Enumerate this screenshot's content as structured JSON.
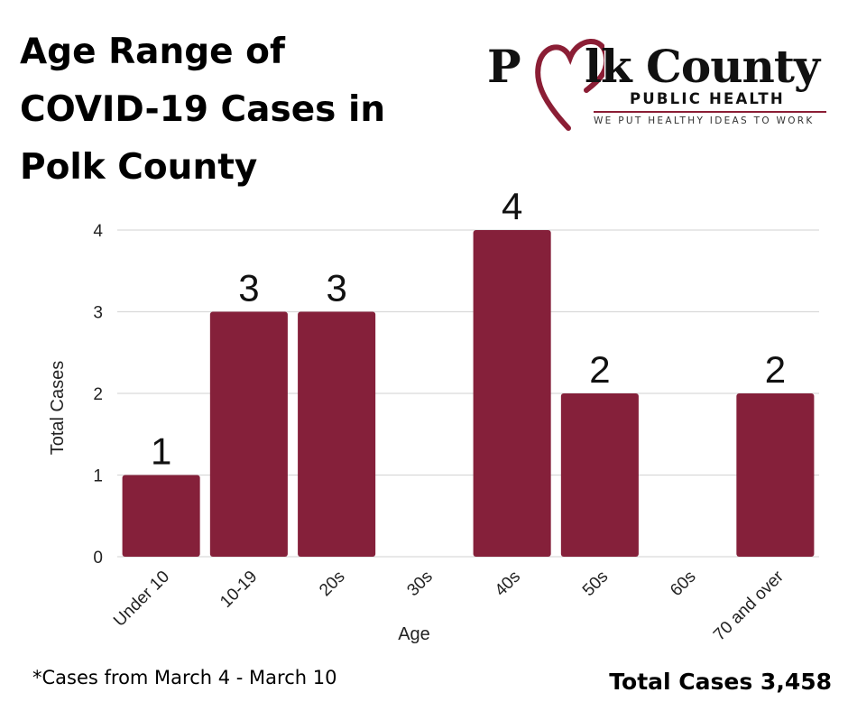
{
  "header": {
    "title_lines": [
      "Age Range of",
      "COVID-19 Cases in",
      "Polk County"
    ]
  },
  "logo": {
    "word_p": "P",
    "word_rest": "lk County",
    "subtitle": "PUBLIC HEALTH",
    "tagline": "WE PUT HEALTHY IDEAS TO WORK",
    "accent_color": "#8b1e35"
  },
  "chart_data": {
    "type": "bar",
    "title": "Age Range of COVID-19 Cases in Polk County",
    "xlabel": "Age",
    "ylabel": "Total Cases",
    "categories": [
      "Under 10",
      "10-19",
      "20s",
      "30s",
      "40s",
      "50s",
      "60s",
      "70 and over"
    ],
    "values": [
      1,
      3,
      3,
      0,
      4,
      2,
      0,
      2
    ],
    "data_labels": [
      "1",
      "3",
      "3",
      "",
      "4",
      "2",
      "",
      "2"
    ],
    "ylim": [
      0,
      4
    ],
    "yticks": [
      0,
      1,
      2,
      3,
      4
    ],
    "grid": true,
    "bar_color": "#85203a",
    "grid_color": "#d9d9d9"
  },
  "footer": {
    "note": "*Cases from March 4 - March 10",
    "total": "Total Cases 3,458"
  }
}
